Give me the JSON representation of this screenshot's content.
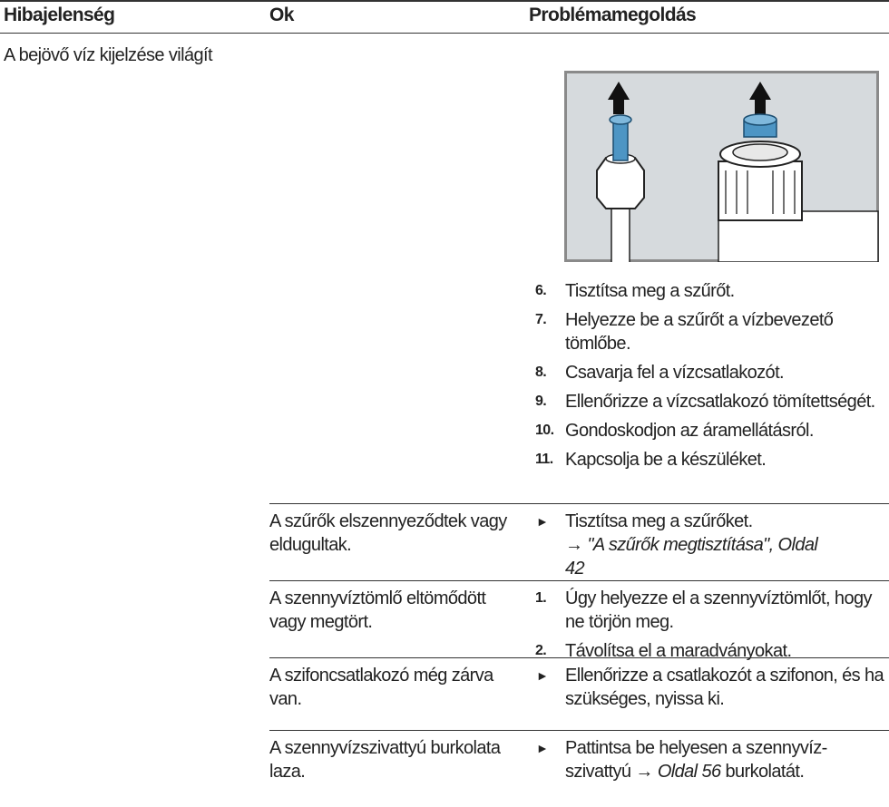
{
  "header": [
    "Hibajelenség",
    "Ok",
    "Problémamegoldás"
  ],
  "rows": [
    {
      "symptom": "A bejövő víz kijelzése világít",
      "steps": [
        {
          "num": "6.",
          "text": "Tisztítsa meg a szűrőt."
        },
        {
          "num": "7.",
          "text": "Helyezze be a szűrőt a vízbevezető tömlőbe."
        },
        {
          "num": "8.",
          "text": "Csavarja fel a vízcsatlakozót."
        },
        {
          "num": "9.",
          "text": "Ellenőrizze a vízcsatlakozó tömített­ségét."
        },
        {
          "num": "10.",
          "text": "Gondoskodjon az áramellátásról."
        },
        {
          "num": "11.",
          "text": "Kapcsolja be a készüléket."
        }
      ]
    },
    {
      "cause": "A szűrők elszennyeződtek vagy eldugultak.",
      "bullet": "►",
      "text": "Tisztítsa meg a szűrőket.",
      "arrow": "→",
      "link": "\"A szűrők megtisztítása\", Oldal 42"
    },
    {
      "cause": "A szennyvíztömlő eltömődött vagy megtört.",
      "steps": [
        {
          "num": "1.",
          "text": "Úgy helyezze el a szennyvíztömlőt, hogy ne törjön meg."
        },
        {
          "num": "2.",
          "text": "Távolítsa el a maradványokat."
        }
      ]
    },
    {
      "cause": "A szifoncsatlakozó még zár­va van.",
      "bullet": "►",
      "text": "Ellenőrizze a csatlakozót a szifonon, és ha szükséges, nyissa ki."
    },
    {
      "cause": "A szennyvízszivattyú burko­lata laza.",
      "bullet": "►",
      "text": "Pattintsa be helyesen a szennyvíz­szivattyú",
      "arrow": "→",
      "link": "Oldal 56",
      "after": "burkolatát."
    }
  ]
}
